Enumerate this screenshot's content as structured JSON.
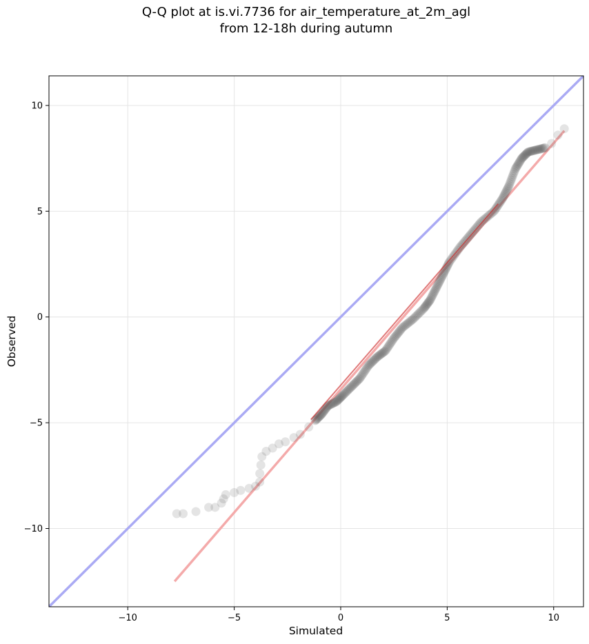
{
  "title_lines": [
    "Q-Q plot at is.vi.7736 for air_temperature_at_2m_agl",
    "from 12-18h during autumn"
  ],
  "chart_data": {
    "type": "scatter",
    "title": "Q-Q plot at is.vi.7736 for air_temperature_at_2m_agl from 12-18h during autumn",
    "xlabel": "Simulated",
    "ylabel": "Observed",
    "xlim": [
      -13.7,
      11.4
    ],
    "ylim": [
      -13.7,
      11.4
    ],
    "xticks": [
      -10,
      -5,
      0,
      5,
      10
    ],
    "yticks": [
      -10,
      -5,
      0,
      5,
      10
    ],
    "grid": true,
    "legend": "none",
    "colors": {
      "points": "#555555",
      "identity_line": "#aaaaf4",
      "fit_line": "#f4aaaa",
      "fit_line_dense": "#cc2222"
    },
    "identity_line": {
      "x": [
        -13.7,
        11.4
      ],
      "y": [
        -13.7,
        11.4
      ]
    },
    "fit_line": {
      "x": [
        -7.8,
        10.5
      ],
      "y": [
        -12.5,
        8.8
      ]
    },
    "quantile_curve": [
      [
        -7.7,
        -9.3
      ],
      [
        -7.4,
        -9.3
      ],
      [
        -6.8,
        -9.2
      ],
      [
        -6.2,
        -9.0
      ],
      [
        -5.9,
        -9.0
      ],
      [
        -5.6,
        -8.8
      ],
      [
        -5.5,
        -8.6
      ],
      [
        -5.4,
        -8.4
      ],
      [
        -5.0,
        -8.3
      ],
      [
        -4.7,
        -8.2
      ],
      [
        -4.3,
        -8.1
      ],
      [
        -4.0,
        -8.0
      ],
      [
        -3.8,
        -7.8
      ],
      [
        -3.8,
        -7.4
      ],
      [
        -3.75,
        -7.0
      ],
      [
        -3.7,
        -6.6
      ],
      [
        -3.5,
        -6.35
      ],
      [
        -3.2,
        -6.2
      ],
      [
        -2.9,
        -6.0
      ],
      [
        -2.6,
        -5.9
      ],
      [
        -2.2,
        -5.7
      ],
      [
        -1.9,
        -5.55
      ],
      [
        -1.5,
        -5.2
      ],
      [
        -1.2,
        -4.9
      ],
      [
        -0.9,
        -4.6
      ],
      [
        -0.6,
        -4.2
      ],
      [
        -0.2,
        -4.0
      ],
      [
        0.1,
        -3.7
      ],
      [
        0.5,
        -3.3
      ],
      [
        0.9,
        -2.9
      ],
      [
        1.3,
        -2.3
      ],
      [
        1.7,
        -1.9
      ],
      [
        2.1,
        -1.6
      ],
      [
        2.5,
        -1.0
      ],
      [
        2.9,
        -0.5
      ],
      [
        3.4,
        -0.1
      ],
      [
        3.9,
        0.4
      ],
      [
        4.2,
        0.8
      ],
      [
        4.5,
        1.4
      ],
      [
        4.8,
        2.0
      ],
      [
        5.1,
        2.6
      ],
      [
        5.6,
        3.3
      ],
      [
        6.1,
        3.9
      ],
      [
        6.6,
        4.5
      ],
      [
        7.2,
        5.0
      ],
      [
        7.6,
        5.6
      ],
      [
        7.9,
        6.2
      ],
      [
        8.2,
        7.0
      ],
      [
        8.5,
        7.5
      ],
      [
        8.8,
        7.8
      ],
      [
        9.2,
        7.9
      ],
      [
        9.6,
        8.0
      ],
      [
        9.9,
        8.2
      ],
      [
        10.2,
        8.6
      ],
      [
        10.5,
        8.9
      ]
    ]
  }
}
